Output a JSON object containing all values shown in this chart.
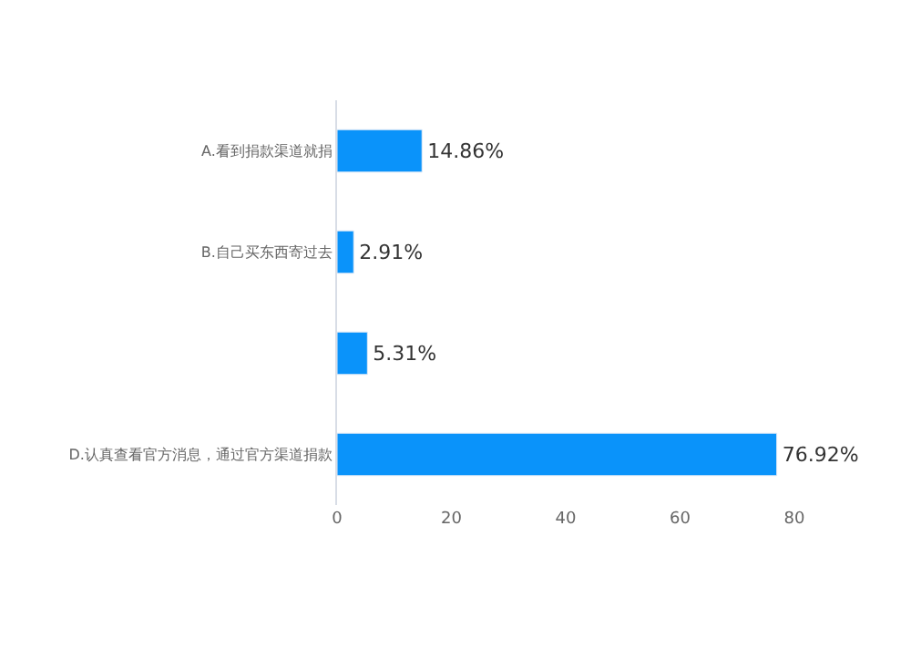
{
  "chart_data": {
    "type": "bar",
    "orientation": "horizontal",
    "categories": [
      "A.看到捐款渠道就捐",
      "B.自己买东西寄过去",
      null,
      "D.认真查看官方消息，通过官方渠道捐款"
    ],
    "values": [
      14.86,
      2.91,
      5.31,
      76.92
    ],
    "value_labels": [
      "14.86%",
      "2.91%",
      "5.31%",
      "76.92%"
    ],
    "color": "#0a93fa",
    "xlim": [
      0,
      80
    ],
    "xticks": [
      0,
      20,
      40,
      60,
      80
    ],
    "legend": false
  }
}
